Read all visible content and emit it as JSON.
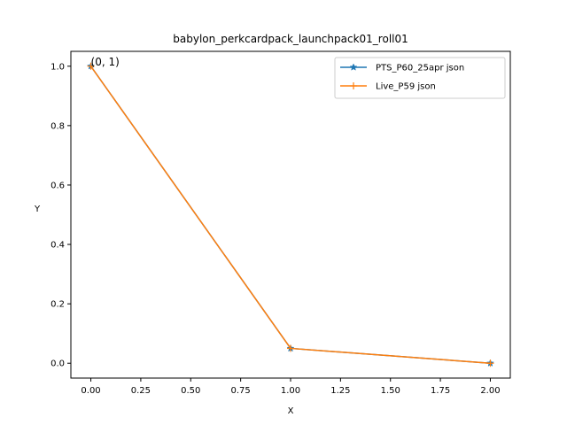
{
  "chart_data": {
    "type": "line",
    "title": "babylon_perkcardpack_launchpack01_roll01",
    "xlabel": "X",
    "ylabel": "Y",
    "xlim": [
      -0.1,
      2.1
    ],
    "ylim": [
      -0.05,
      1.05
    ],
    "xticks": [
      "0.00",
      "0.25",
      "0.50",
      "0.75",
      "1.00",
      "1.25",
      "1.50",
      "1.75",
      "2.00"
    ],
    "yticks": [
      "0.0",
      "0.2",
      "0.4",
      "0.6",
      "0.8",
      "1.0"
    ],
    "grid": false,
    "legend_position": "top-right",
    "annotations": [
      {
        "text": "(0, 1)",
        "x": 0,
        "y": 1
      }
    ],
    "series": [
      {
        "name": "PTS_P60_25apr json",
        "color": "#1f77b4",
        "marker": "star",
        "x": [
          0,
          1,
          2
        ],
        "y": [
          1.0,
          0.05,
          0.0
        ]
      },
      {
        "name": "Live_P59 json",
        "color": "#ff7f0e",
        "marker": "plus",
        "x": [
          0,
          1,
          2
        ],
        "y": [
          1.0,
          0.05,
          0.0
        ]
      }
    ]
  }
}
